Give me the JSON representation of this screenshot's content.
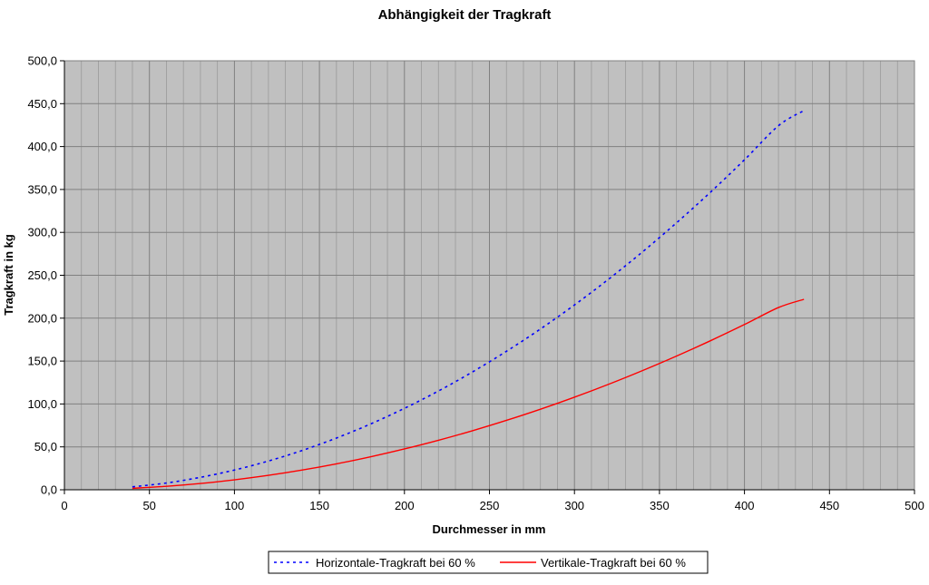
{
  "chart_data": {
    "type": "line",
    "title": "Abhängigkeit der Tragkraft",
    "xlabel": "Durchmesser in mm",
    "ylabel": "Tragkraft in kg",
    "xlim": [
      0,
      500
    ],
    "ylim": [
      0,
      500
    ],
    "x_ticks": [
      0,
      50,
      100,
      150,
      200,
      250,
      300,
      350,
      400,
      450,
      500
    ],
    "x_tick_labels": [
      "0",
      "50",
      "100",
      "150",
      "200",
      "250",
      "300",
      "350",
      "400",
      "450",
      "500"
    ],
    "y_ticks": [
      0,
      50,
      100,
      150,
      200,
      250,
      300,
      350,
      400,
      450,
      500
    ],
    "y_tick_labels": [
      "0,0",
      "50,0",
      "100,0",
      "150,0",
      "200,0",
      "250,0",
      "300,0",
      "350,0",
      "400,0",
      "450,0",
      "500,0"
    ],
    "grid": true,
    "legend_position": "bottom",
    "plot_background": "#c0c0c0",
    "series": [
      {
        "name": "Horizontale-Tragkraft bei 60 %",
        "color": "#0000ff",
        "style": "dotted",
        "x": [
          40,
          60,
          80,
          100,
          120,
          140,
          160,
          180,
          200,
          220,
          240,
          260,
          280,
          300,
          320,
          340,
          360,
          380,
          400,
          420,
          435
        ],
        "y": [
          3.4,
          7.9,
          14.5,
          23.0,
          33.5,
          45.9,
          60.3,
          76.6,
          94.9,
          115.1,
          137.3,
          161.4,
          187.4,
          215.4,
          245.3,
          277.2,
          311.1,
          346.8,
          384.6,
          424.3,
          442.0
        ]
      },
      {
        "name": "Vertikale-Tragkraft bei 60 %",
        "color": "#ff0000",
        "style": "solid",
        "x": [
          40,
          60,
          80,
          100,
          120,
          140,
          160,
          180,
          200,
          220,
          240,
          260,
          280,
          300,
          320,
          340,
          360,
          380,
          400,
          420,
          435
        ],
        "y": [
          1.7,
          4.0,
          7.3,
          11.6,
          16.8,
          23.0,
          30.2,
          38.4,
          47.6,
          57.7,
          68.8,
          80.9,
          93.9,
          107.9,
          122.9,
          138.9,
          155.8,
          173.7,
          192.6,
          212.4,
          222.0
        ]
      }
    ]
  }
}
